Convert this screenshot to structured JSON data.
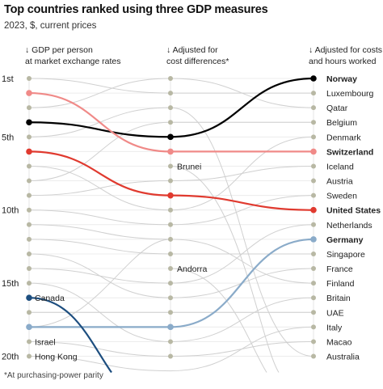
{
  "header": {
    "title": "Top countries ranked using three GDP measures",
    "subtitle": "2023, $, current prices"
  },
  "columns": [
    {
      "line1": "↓ GDP per person",
      "line2": "at market exchange rates"
    },
    {
      "line1": "↓ Adjusted for",
      "line2": "cost differences*"
    },
    {
      "line1": "↓ Adjusted for costs",
      "line2": "and hours worked"
    }
  ],
  "footnote": "*At purchasing-power parity",
  "chart_data": {
    "type": "bump",
    "title": "Top countries ranked using three GDP measures",
    "subtitle": "2023, $, current prices",
    "measures": [
      "GDP per person at market exchange rates",
      "Adjusted for cost differences*",
      "Adjusted for costs and hours worked"
    ],
    "rank_labels": [
      {
        "rank": 1,
        "label": "1st"
      },
      {
        "rank": 5,
        "label": "5th"
      },
      {
        "rank": 10,
        "label": "10th"
      },
      {
        "rank": 15,
        "label": "15th"
      },
      {
        "rank": 20,
        "label": "20th"
      }
    ],
    "ranks_shown": 20,
    "final_ranking": [
      "Norway",
      "Luxembourg",
      "Qatar",
      "Belgium",
      "Denmark",
      "Switzerland",
      "Iceland",
      "Austria",
      "Sweden",
      "United States",
      "Netherlands",
      "Germany",
      "Singapore",
      "France",
      "Finland",
      "Britain",
      "UAE",
      "Italy",
      "Macao",
      "Australia"
    ],
    "highlighted": [
      {
        "name": "Norway",
        "color": "#000000",
        "ranks": [
          4,
          5,
          1
        ]
      },
      {
        "name": "Switzerland",
        "color": "#f08a88",
        "ranks": [
          2,
          6,
          6
        ]
      },
      {
        "name": "United States",
        "color": "#e03a2f",
        "ranks": [
          6,
          9,
          10
        ]
      },
      {
        "name": "Germany",
        "color": "#8aabc9",
        "ranks": [
          18,
          18,
          12
        ]
      },
      {
        "name": "Canada",
        "color": "#1d4e7f",
        "ranks": [
          16,
          null,
          null
        ]
      }
    ],
    "labels_column1": [
      {
        "name": "Canada",
        "rank": 16
      },
      {
        "name": "Israel",
        "rank": 19
      },
      {
        "name": "Hong Kong",
        "rank": 20
      }
    ],
    "labels_column2": [
      {
        "name": "Brunei",
        "rank": 7
      },
      {
        "name": "Andorra",
        "rank": 14
      }
    ]
  },
  "colors": {
    "grey_line": "#d0d0d0",
    "dot": "#b8b8a4",
    "text": "#111111"
  }
}
